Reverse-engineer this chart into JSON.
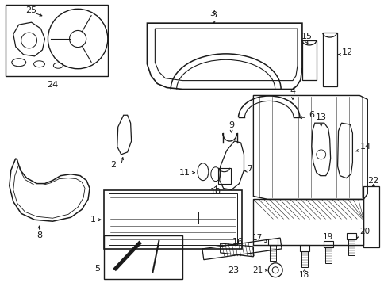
{
  "bg_color": "#ffffff",
  "line_color": "#1a1a1a",
  "fig_width": 4.85,
  "fig_height": 3.57,
  "dpi": 100
}
